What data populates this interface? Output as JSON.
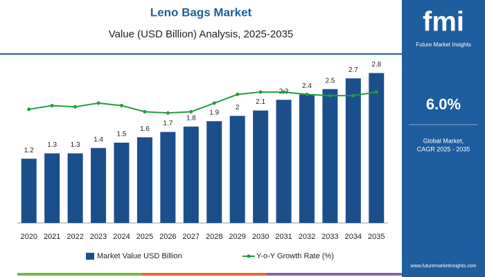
{
  "chart_data": {
    "type": "bar",
    "title": "Leno Bags Market",
    "subtitle": "Value (USD Billion) Analysis, 2025-2035",
    "categories": [
      "2020",
      "2021",
      "2022",
      "2023",
      "2024",
      "2025",
      "2026",
      "2027",
      "2028",
      "2029",
      "2030",
      "2031",
      "2032",
      "2033",
      "2034",
      "2035"
    ],
    "series": [
      {
        "name": "Market Value USD Billion",
        "type": "bar",
        "color": "#1b4f8c",
        "values": [
          1.2,
          1.3,
          1.3,
          1.4,
          1.5,
          1.6,
          1.7,
          1.8,
          1.9,
          2.0,
          2.1,
          2.3,
          2.4,
          2.5,
          2.7,
          2.8
        ]
      },
      {
        "name": "Y-o-Y Growth Rate (%)",
        "type": "line",
        "axis": "y2",
        "color": "#1e9e3e",
        "values": [
          6.2,
          6.5,
          6.4,
          6.7,
          6.5,
          6.0,
          5.9,
          6.0,
          6.7,
          7.4,
          7.6,
          7.6,
          7.4,
          7.3,
          7.3,
          7.6
        ]
      }
    ],
    "ylim": [
      0,
      3
    ],
    "y2lim": [
      -3,
      10
    ],
    "legend": "bottom"
  },
  "sidebar": {
    "logo": "fmi",
    "brand": "Future Market Insights",
    "cagr": "6.0%",
    "cagr_label_1": "Global Market,",
    "cagr_label_2": "CAGR 2025 - 2035",
    "website": "www.futuremarketinsights.com"
  }
}
